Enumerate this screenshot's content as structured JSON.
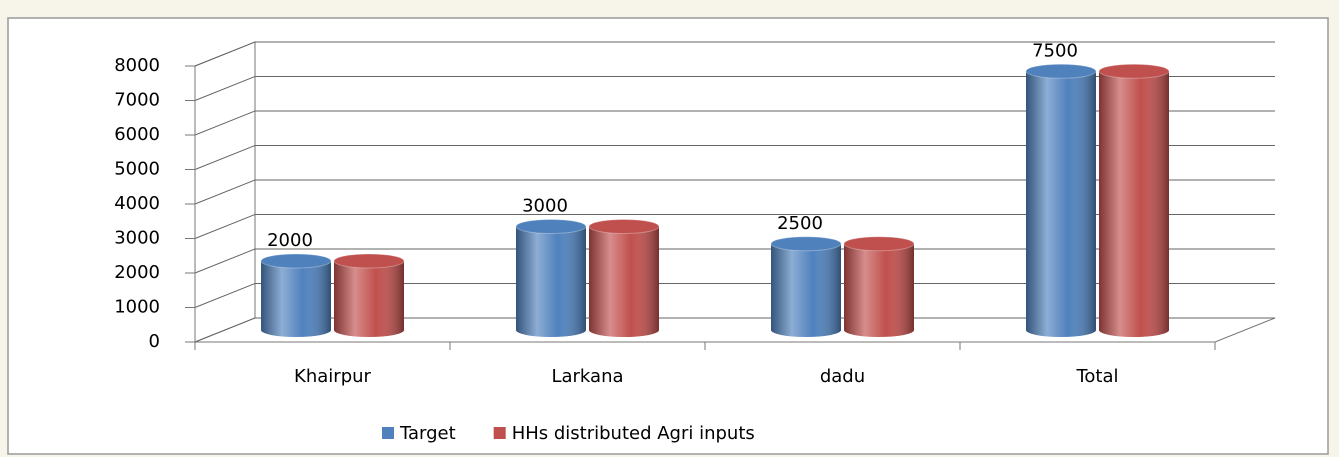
{
  "chart_data": {
    "type": "bar3d",
    "categories": [
      "Khairpur",
      "Larkana",
      "dadu",
      "Total"
    ],
    "series": [
      {
        "name": "Target",
        "color": "#4f81bd",
        "values": [
          2000,
          3000,
          2500,
          7500
        ],
        "labels": true
      },
      {
        "name": "HHs distributed Agri inputs",
        "color": "#c0504d",
        "values": [
          2000,
          3000,
          2500,
          7500
        ],
        "labels": false
      }
    ],
    "ylim": [
      0,
      8000
    ],
    "yticks": [
      0,
      1000,
      2000,
      3000,
      4000,
      5000,
      6000,
      7000,
      8000
    ],
    "grid": true,
    "legend": "bottom"
  }
}
